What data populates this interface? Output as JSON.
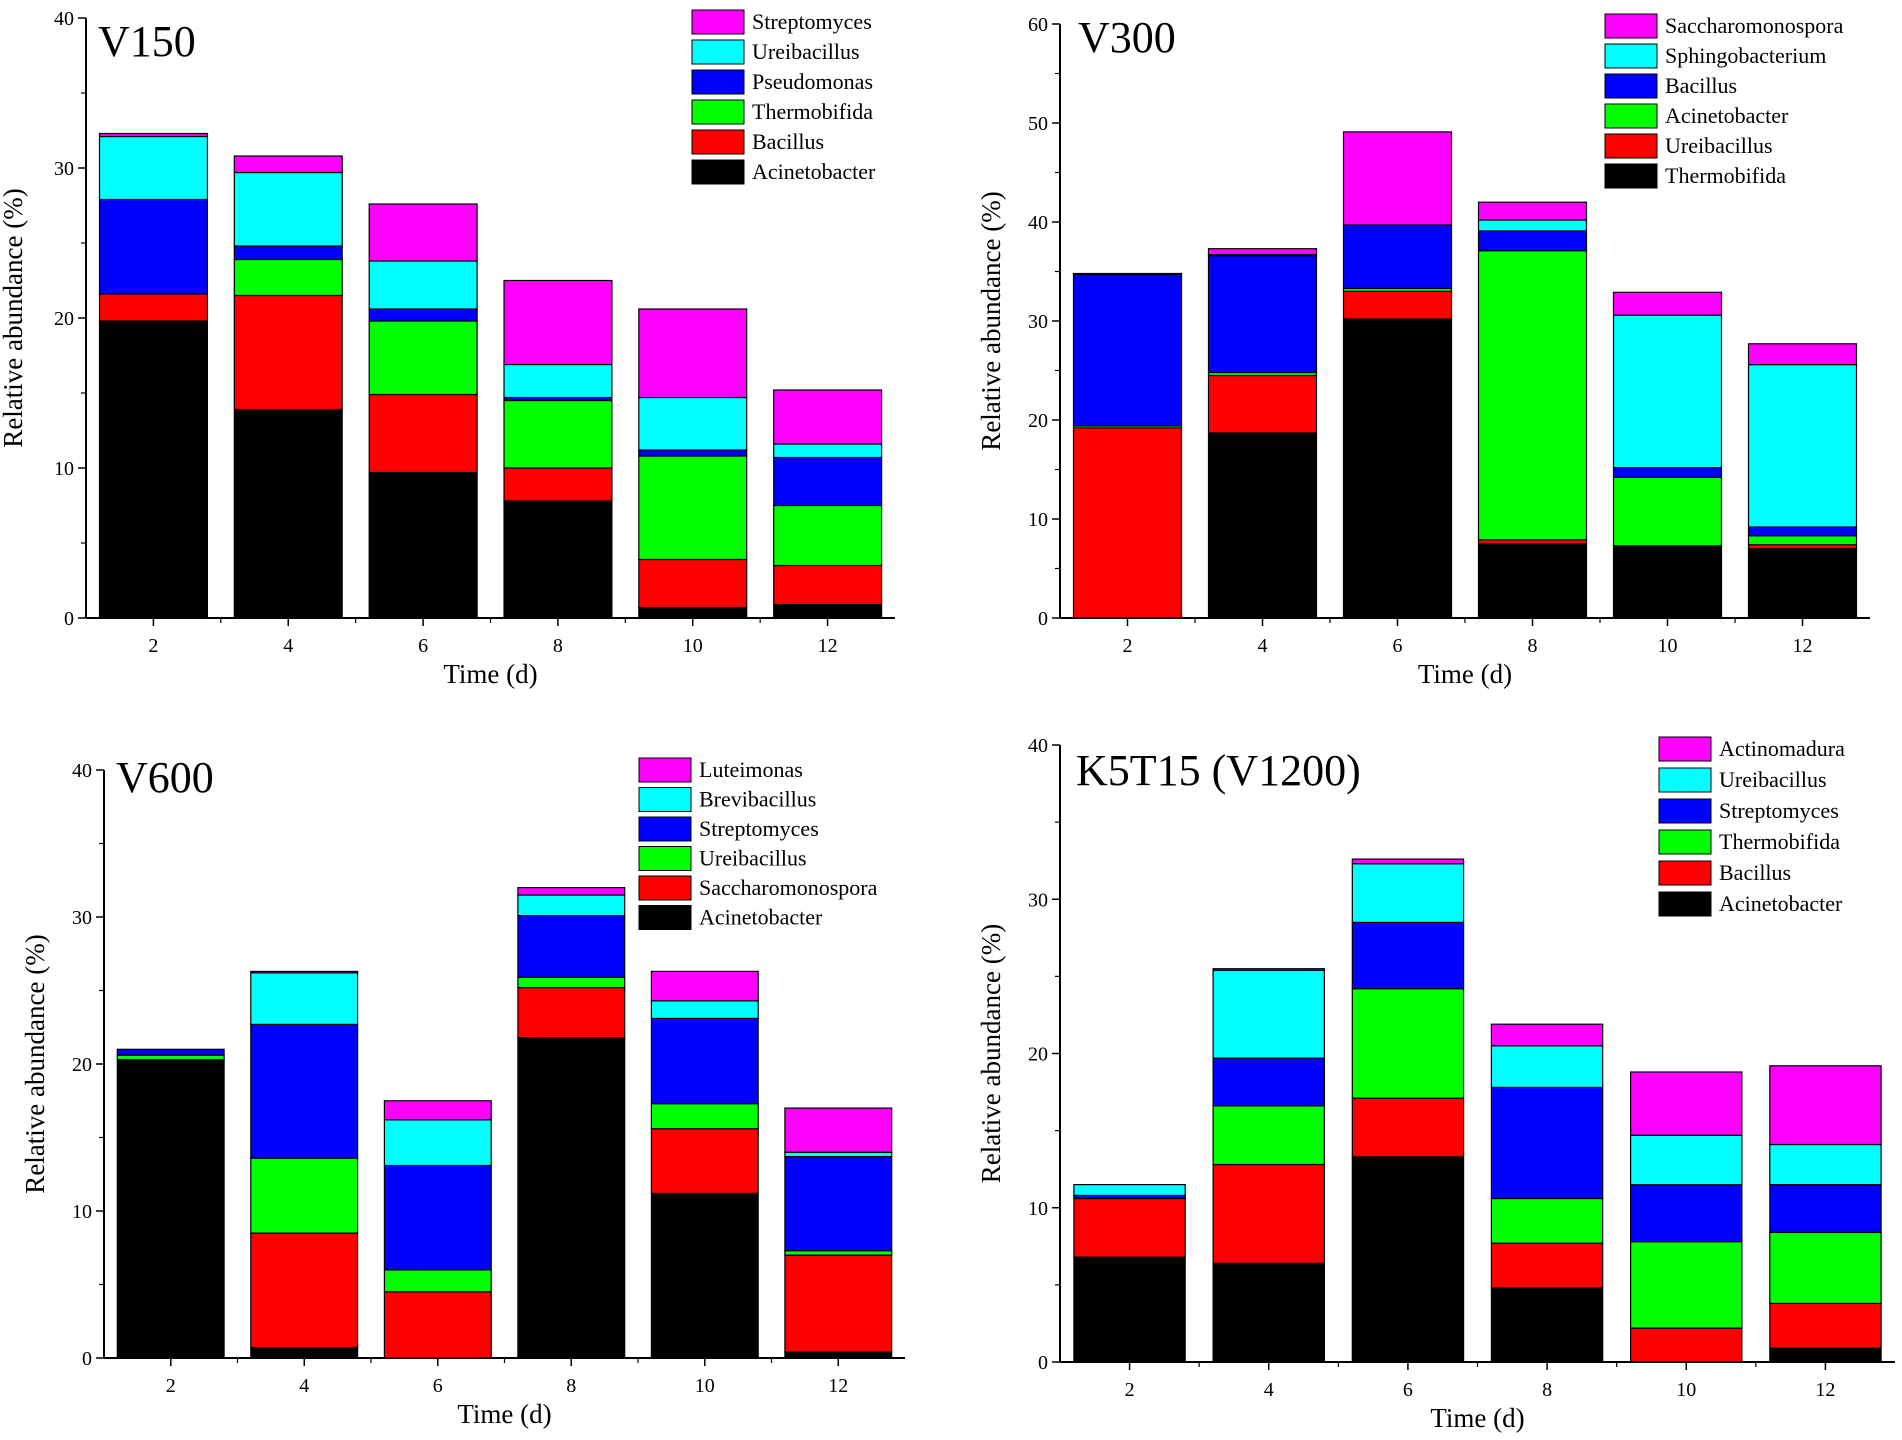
{
  "colors": {
    "black": "#000000",
    "red": "#ff0000",
    "green": "#00ff00",
    "blue": "#0000ff",
    "cyan": "#00ffff",
    "magenta": "#ff00ff"
  },
  "chart_data": [
    {
      "type": "bar",
      "stacked": true,
      "title": "V150",
      "xlabel": "Time (d)",
      "ylabel": "Relative abundance (%)",
      "ylim": [
        0,
        40
      ],
      "yticks": [
        0,
        10,
        20,
        30,
        40
      ],
      "categories": [
        "2",
        "4",
        "6",
        "8",
        "10",
        "12"
      ],
      "legend_position": "top-right",
      "series": [
        {
          "name": "Acinetobacter",
          "color": "black",
          "values": [
            19.8,
            13.9,
            9.7,
            7.8,
            0.7,
            0.9
          ]
        },
        {
          "name": "Bacillus",
          "color": "red",
          "values": [
            1.8,
            7.6,
            5.2,
            2.2,
            3.2,
            2.6
          ]
        },
        {
          "name": "Thermobifida",
          "color": "green",
          "values": [
            0.0,
            2.4,
            4.9,
            4.5,
            6.9,
            4.0
          ]
        },
        {
          "name": "Pseudomonas",
          "color": "blue",
          "values": [
            6.3,
            0.9,
            0.8,
            0.2,
            0.4,
            3.2
          ]
        },
        {
          "name": "Ureibacillus",
          "color": "cyan",
          "values": [
            4.2,
            4.9,
            3.2,
            2.2,
            3.5,
            0.9
          ]
        },
        {
          "name": "Streptomyces",
          "color": "magenta",
          "values": [
            0.2,
            1.1,
            3.8,
            5.6,
            5.9,
            3.6
          ]
        }
      ]
    },
    {
      "type": "bar",
      "stacked": true,
      "title": "V300",
      "xlabel": "Time (d)",
      "ylabel": "Relative abundance (%)",
      "ylim": [
        0,
        60
      ],
      "yticks": [
        0,
        10,
        20,
        30,
        40,
        50,
        60
      ],
      "categories": [
        "2",
        "4",
        "6",
        "8",
        "10",
        "12"
      ],
      "legend_position": "top-right",
      "series": [
        {
          "name": "Thermobifida",
          "color": "black",
          "values": [
            0.0,
            18.7,
            30.2,
            7.5,
            7.2,
            7.0
          ]
        },
        {
          "name": "Ureibacillus",
          "color": "red",
          "values": [
            19.2,
            5.8,
            2.8,
            0.4,
            0.1,
            0.4
          ]
        },
        {
          "name": "Acinetobacter",
          "color": "green",
          "values": [
            0.2,
            0.3,
            0.3,
            29.2,
            6.9,
            0.9
          ]
        },
        {
          "name": "Bacillus",
          "color": "blue",
          "values": [
            15.3,
            11.8,
            6.4,
            2.0,
            1.0,
            0.9
          ]
        },
        {
          "name": "Sphingobacterium",
          "color": "cyan",
          "values": [
            0.1,
            0.1,
            0.0,
            1.1,
            15.4,
            16.4
          ]
        },
        {
          "name": "Saccharomonospora",
          "color": "magenta",
          "values": [
            0.0,
            0.6,
            9.4,
            1.8,
            2.3,
            2.1
          ]
        }
      ]
    },
    {
      "type": "bar",
      "stacked": true,
      "title": "V600",
      "xlabel": "Time (d)",
      "ylabel": "Relative abundance (%)",
      "ylim": [
        0,
        40
      ],
      "yticks": [
        0,
        10,
        20,
        30,
        40
      ],
      "categories": [
        "2",
        "4",
        "6",
        "8",
        "10",
        "12"
      ],
      "legend_position": "top-right",
      "series": [
        {
          "name": "Acinetobacter",
          "color": "black",
          "values": [
            20.3,
            0.7,
            0.0,
            21.8,
            11.2,
            0.4
          ]
        },
        {
          "name": "Saccharomonospora",
          "color": "red",
          "values": [
            0.0,
            7.8,
            4.5,
            3.4,
            4.4,
            6.6
          ]
        },
        {
          "name": "Ureibacillus",
          "color": "green",
          "values": [
            0.3,
            5.1,
            1.5,
            0.7,
            1.7,
            0.3
          ]
        },
        {
          "name": "Streptomyces",
          "color": "blue",
          "values": [
            0.4,
            9.1,
            7.1,
            4.2,
            5.8,
            6.4
          ]
        },
        {
          "name": "Brevibacillus",
          "color": "cyan",
          "values": [
            0.0,
            3.5,
            3.1,
            1.4,
            1.2,
            0.3
          ]
        },
        {
          "name": "Luteimonas",
          "color": "magenta",
          "values": [
            0.0,
            0.1,
            1.3,
            0.5,
            2.0,
            3.0
          ]
        }
      ]
    },
    {
      "type": "bar",
      "stacked": true,
      "title": "K5T15 (V1200)",
      "xlabel": "Time (d)",
      "ylabel": "Relative abundance (%)",
      "ylim": [
        0,
        40
      ],
      "yticks": [
        0,
        10,
        20,
        30,
        40
      ],
      "categories": [
        "2",
        "4",
        "6",
        "8",
        "10",
        "12"
      ],
      "legend_position": "top-right",
      "series": [
        {
          "name": "Acinetobacter",
          "color": "black",
          "values": [
            6.8,
            6.4,
            13.3,
            4.8,
            0.0,
            0.9
          ]
        },
        {
          "name": "Bacillus",
          "color": "red",
          "values": [
            3.8,
            6.4,
            3.8,
            2.9,
            2.2,
            2.9
          ]
        },
        {
          "name": "Thermobifida",
          "color": "green",
          "values": [
            0.0,
            3.8,
            7.1,
            2.9,
            5.6,
            4.6
          ]
        },
        {
          "name": "Streptomyces",
          "color": "blue",
          "values": [
            0.2,
            3.1,
            4.3,
            7.2,
            3.7,
            3.1
          ]
        },
        {
          "name": "Ureibacillus",
          "color": "cyan",
          "values": [
            0.7,
            5.7,
            3.8,
            2.7,
            3.2,
            2.6
          ]
        },
        {
          "name": "Actinomadura",
          "color": "magenta",
          "values": [
            0.0,
            0.1,
            0.3,
            1.4,
            4.1,
            5.1
          ]
        }
      ]
    }
  ]
}
